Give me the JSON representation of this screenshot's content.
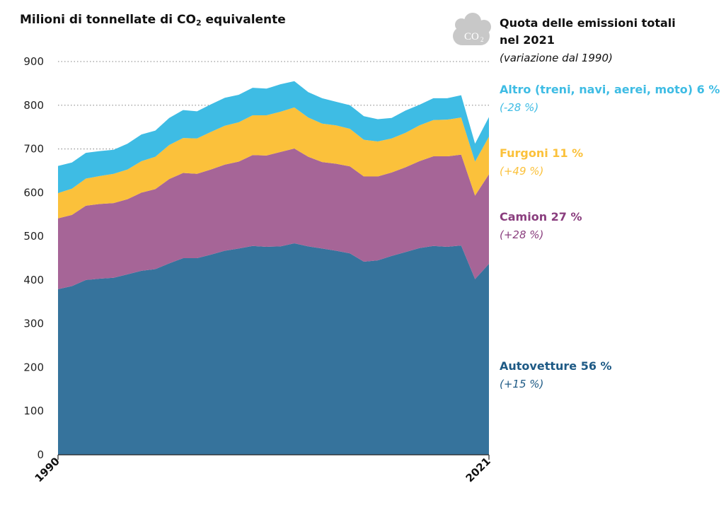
{
  "chart_data": {
    "type": "area",
    "stacked": true,
    "ylabel_prefix": "Milioni di tonnellate di CO",
    "ylabel_sub": "2",
    "ylabel_suffix": " equivalente",
    "ylim": [
      0,
      900
    ],
    "yticks": [
      0,
      100,
      200,
      300,
      400,
      500,
      600,
      700,
      800,
      900
    ],
    "xlim": [
      1990,
      2021
    ],
    "xtick_labels": [
      "1990",
      "2021"
    ],
    "grid": "horizontal dotted",
    "x": [
      1990,
      1991,
      1992,
      1993,
      1994,
      1995,
      1996,
      1997,
      1998,
      1999,
      2000,
      2001,
      2002,
      2003,
      2004,
      2005,
      2006,
      2007,
      2008,
      2009,
      2010,
      2011,
      2012,
      2013,
      2014,
      2015,
      2016,
      2017,
      2018,
      2019,
      2020,
      2021
    ],
    "series": [
      {
        "name": "Autovetture",
        "color": "#36739c",
        "values": [
          379,
          386,
          400,
          403,
          405,
          413,
          421,
          425,
          438,
          450,
          450,
          458,
          467,
          472,
          478,
          476,
          477,
          484,
          477,
          472,
          467,
          461,
          442,
          445,
          455,
          464,
          473,
          478,
          476,
          479,
          402,
          437
        ]
      },
      {
        "name": "Camion",
        "color": "#a66597",
        "values": [
          162,
          163,
          170,
          171,
          171,
          172,
          179,
          183,
          193,
          195,
          193,
          195,
          197,
          199,
          208,
          209,
          216,
          217,
          205,
          198,
          199,
          199,
          195,
          192,
          191,
          194,
          199,
          205,
          207,
          208,
          191,
          205
        ]
      },
      {
        "name": "Furgoni",
        "color": "#fbc13b",
        "values": [
          58,
          60,
          62,
          64,
          67,
          68,
          72,
          74,
          78,
          80,
          81,
          86,
          89,
          90,
          91,
          92,
          92,
          94,
          90,
          88,
          88,
          86,
          84,
          80,
          78,
          79,
          82,
          83,
          84,
          85,
          78,
          86
        ]
      },
      {
        "name": "Altro (treni, navi, aerei, moto)",
        "color": "#3ebce4",
        "values": [
          62,
          60,
          59,
          57,
          55,
          59,
          61,
          60,
          62,
          64,
          62,
          63,
          64,
          63,
          63,
          61,
          63,
          60,
          58,
          58,
          54,
          54,
          54,
          51,
          47,
          51,
          47,
          50,
          49,
          51,
          41,
          45
        ]
      }
    ]
  },
  "legend": {
    "title_line1": "Quota delle emissioni totali",
    "title_line2": "nel 2021",
    "subtitle": "(variazione dal 1990)",
    "cloud_icon_text": "CO",
    "cloud_icon_sub": "2",
    "items": [
      {
        "label": "Altro (treni, navi, aerei, moto) 6 %",
        "change": "(-28 %)",
        "color": "#3ebce4"
      },
      {
        "label": "Furgoni 11 %",
        "change": "(+49 %)",
        "color": "#fbc13b"
      },
      {
        "label": "Camion 27 %",
        "change": "(+28 %)",
        "color": "#8a3e7e"
      },
      {
        "label": "Autovetture 56 %",
        "change": "(+15 %)",
        "color": "#1e5a85"
      }
    ]
  }
}
